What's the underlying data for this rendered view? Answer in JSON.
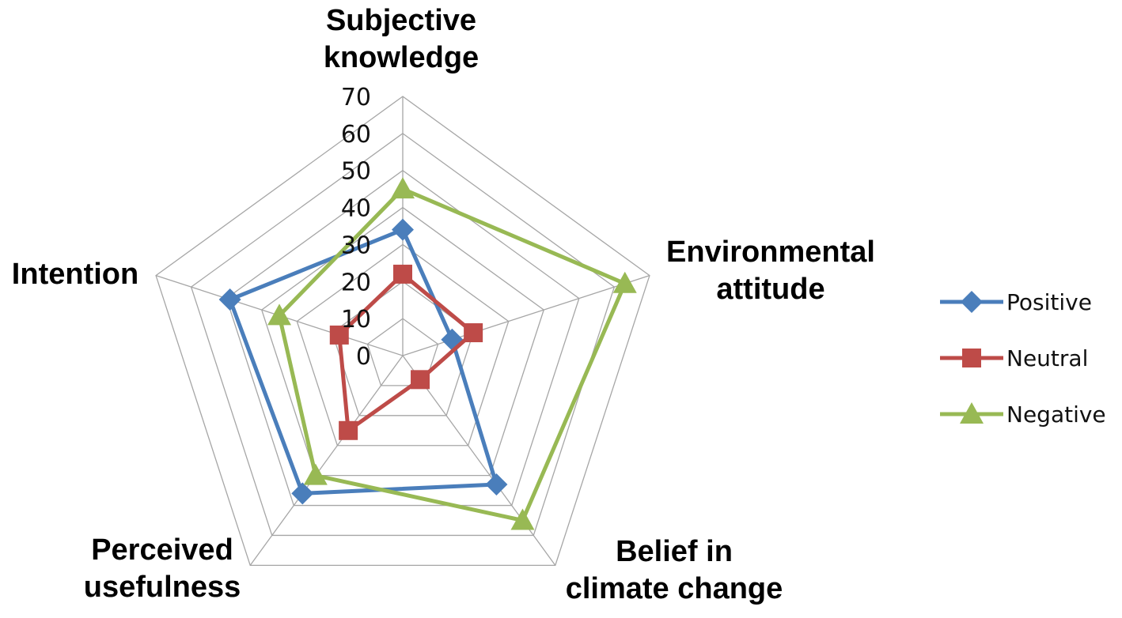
{
  "chart_data": {
    "type": "radar",
    "title": "",
    "axes": [
      {
        "key": "subjective_knowledge",
        "lines": [
          "Subjective",
          "knowledge"
        ]
      },
      {
        "key": "environmental_attitude",
        "lines": [
          "Environmental",
          "attitude"
        ]
      },
      {
        "key": "belief_in_climate_change",
        "lines": [
          "Belief in",
          "climate change"
        ]
      },
      {
        "key": "perceived_usefulness",
        "lines": [
          "Perceived",
          "usefulness"
        ]
      },
      {
        "key": "intention",
        "lines": [
          "Intention"
        ]
      }
    ],
    "range": [
      0,
      70
    ],
    "ticks": [
      0,
      10,
      20,
      30,
      40,
      50,
      60,
      70
    ],
    "grid": true,
    "legend_position": "right",
    "series": [
      {
        "name": "Positive",
        "marker": "diamond",
        "color": "#4a7ebb",
        "values": [
          34,
          14,
          43,
          46,
          49
        ]
      },
      {
        "name": "Neutral",
        "marker": "square",
        "color": "#be4b48",
        "values": [
          22,
          20,
          8,
          25,
          18
        ]
      },
      {
        "name": "Negative",
        "marker": "triangle",
        "color": "#98b954",
        "values": [
          45,
          63,
          55,
          40,
          35
        ]
      }
    ]
  }
}
